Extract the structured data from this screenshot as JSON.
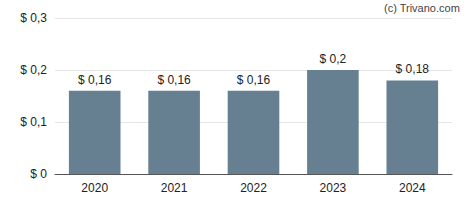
{
  "chart_data": {
    "type": "bar",
    "annotations": [
      "(c) Trivano.com"
    ],
    "categories": [
      "2020",
      "2021",
      "2022",
      "2023",
      "2024"
    ],
    "values": [
      0.16,
      0.16,
      0.16,
      0.2,
      0.18
    ],
    "value_labels": [
      "$ 0,16",
      "$ 0,16",
      "$ 0,16",
      "$ 0,2",
      "$ 0,18"
    ],
    "data_labels": true,
    "color": "#667f91",
    "ylim": [
      0,
      0.3
    ],
    "yticks": [
      {
        "value": 0,
        "label": "$ 0"
      },
      {
        "value": 0.1,
        "label": "$ 0,1"
      },
      {
        "value": 0.2,
        "label": "$ 0,2"
      },
      {
        "value": 0.3,
        "label": "$ 0,3"
      }
    ],
    "grid": true
  }
}
